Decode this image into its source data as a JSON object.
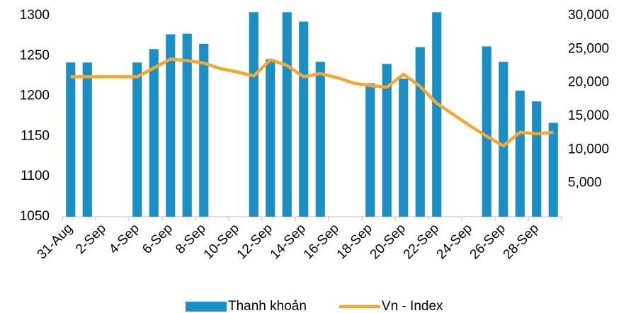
{
  "chart_data": {
    "type": "bar-line",
    "categories": [
      "31-Aug",
      null,
      "2-Sep",
      null,
      "4-Sep",
      null,
      "6-Sep",
      null,
      "8-Sep",
      null,
      "10-Sep",
      null,
      "12-Sep",
      null,
      "14-Sep",
      null,
      "16-Sep",
      null,
      "18-Sep",
      null,
      "20-Sep",
      null,
      "22-Sep",
      null,
      "24-Sep",
      null,
      "26-Sep",
      null,
      "28-Sep",
      null
    ],
    "series": [
      {
        "name": "Thanh khoản",
        "type": "bar",
        "axis": "y2",
        "color": "#1b8fc4",
        "values": [
          23000,
          23000,
          null,
          null,
          23000,
          25000,
          27200,
          27300,
          25800,
          null,
          null,
          30500,
          23500,
          30500,
          29100,
          23100,
          null,
          null,
          19900,
          22800,
          20600,
          25300,
          30500,
          null,
          null,
          25400,
          23100,
          18800,
          17200,
          14000
        ]
      },
      {
        "name": "Vn - Index",
        "type": "line",
        "axis": "y",
        "color": "#f5a733",
        "values": [
          1224,
          1224,
          1224,
          1224,
          1224,
          1235,
          1246,
          1244,
          1241,
          1234,
          1230,
          1225,
          1245,
          1238,
          1224,
          1228,
          1223,
          1216,
          1213,
          1211,
          1227,
          1212,
          1191,
          1177,
          1163,
          1150,
          1138,
          1155,
          1153,
          1155
        ]
      }
    ],
    "ylim": [
      1050,
      1300
    ],
    "yticks": [
      1050,
      1100,
      1150,
      1200,
      1250,
      1300
    ],
    "y2lim": [
      0,
      30000
    ],
    "y2ticks": [
      {
        "value": 5000,
        "label": "5,000"
      },
      {
        "value": 10000,
        "label": "10,000"
      },
      {
        "value": 15000,
        "label": "15,000"
      },
      {
        "value": 20000,
        "label": "20,000"
      },
      {
        "value": 25000,
        "label": "25,000"
      },
      {
        "value": 30000,
        "label": "30,000"
      }
    ],
    "legend": "bottom"
  }
}
